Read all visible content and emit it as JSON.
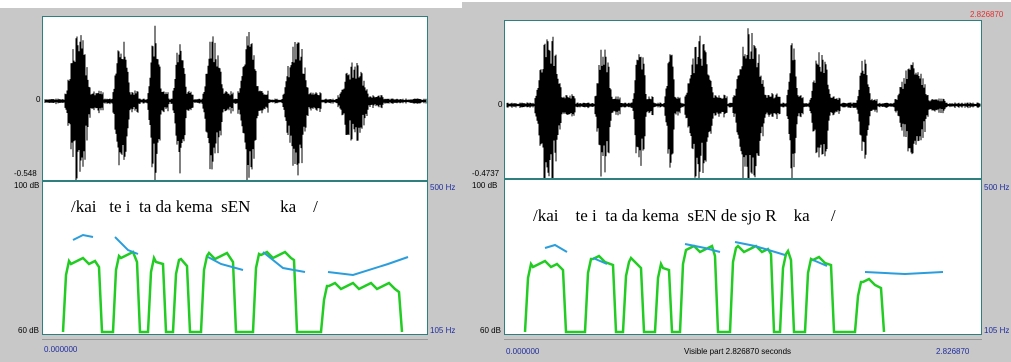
{
  "left": {
    "wave_top": "",
    "wave_zero": "0",
    "wave_bottom": "-0.548",
    "db_top": "100 dB",
    "db_bottom": "60 dB",
    "hz_top": "500 Hz",
    "hz_bottom": "105 Hz",
    "transcript": "/kai   te i  ta da kema  sEN       ka    /",
    "time_start": "0.000000",
    "time_end": "",
    "visible_part": ""
  },
  "right": {
    "wave_top": "2.826870",
    "wave_zero": "0",
    "wave_bottom": "-0.4737",
    "db_top": "100 dB",
    "db_bottom": "60 dB",
    "hz_top": "500 Hz",
    "hz_bottom": "105 Hz",
    "transcript": "/kai    te i  ta da kema  sEN de sjo R    ka     /",
    "time_start": "0.000000",
    "time_end": "2.826870",
    "visible_part": "Visible part 2.826870 seconds"
  },
  "colors": {
    "intensity": "#22cc22",
    "pitch": "#2a9ddc",
    "frame": "#2f7f7f",
    "background": "#c8c8c8"
  }
}
